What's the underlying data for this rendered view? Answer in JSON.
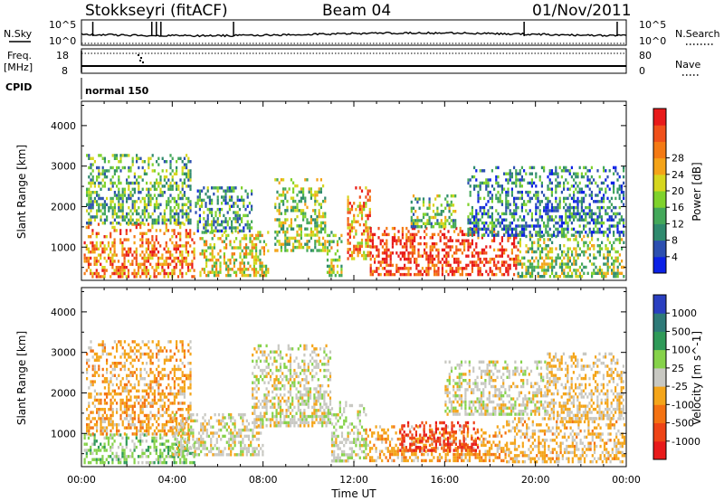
{
  "header": {
    "station": "Stokkseyri (fitACF)",
    "beam": "Beam 04",
    "date": "01/Nov/2011"
  },
  "panels": {
    "nsky_label": "N.Sky",
    "nsky_ticks": [
      "10^5",
      "10^0"
    ],
    "nsearch_label": "N.Search",
    "nsearch_ticks": [
      "10^5",
      "10^0"
    ],
    "freq_label_1": "Freq.",
    "freq_label_2": "[MHz]",
    "freq_ticks": [
      "18",
      "8"
    ],
    "nave_label": "Nave",
    "nave_ticks": [
      "80",
      "0"
    ],
    "cpid_label": "CPID",
    "cpid_value": "normal 150"
  },
  "chart_data": [
    {
      "type": "heatmap",
      "title": "Power",
      "ylabel": "Slant Range [km]",
      "xlabel": "Time UT",
      "xlim": [
        0,
        24
      ],
      "ylim": [
        180,
        4600
      ],
      "x_tick_labels": [
        "00:00",
        "04:00",
        "08:00",
        "12:00",
        "16:00",
        "20:00",
        "00:00"
      ],
      "y_ticks": [
        1000,
        2000,
        3000,
        4000
      ],
      "colorbar": {
        "label": "Power [dB]",
        "range": [
          0,
          32
        ],
        "ticks": [
          "4",
          "8",
          "12",
          "16",
          "20",
          "24",
          "28"
        ],
        "colors": [
          "#0b21e6",
          "#2c4fb0",
          "#2f8a6e",
          "#44a85a",
          "#7fd22c",
          "#d6d61e",
          "#f4a318",
          "#f47a14",
          "#f0501a",
          "#e81a1a"
        ]
      },
      "regions": [
        {
          "t0": 0.1,
          "t1": 5.0,
          "r0": 300,
          "r1": 1600,
          "level": 0.75
        },
        {
          "t0": 0.2,
          "t1": 4.8,
          "r0": 1600,
          "r1": 3300,
          "level": 0.35
        },
        {
          "t0": 5.2,
          "t1": 8.2,
          "r0": 300,
          "r1": 1400,
          "level": 0.55
        },
        {
          "t0": 5.0,
          "t1": 7.5,
          "r0": 1400,
          "r1": 2500,
          "level": 0.3
        },
        {
          "t0": 8.5,
          "t1": 10.7,
          "r0": 900,
          "r1": 2700,
          "level": 0.45
        },
        {
          "t0": 10.8,
          "t1": 11.5,
          "r0": 300,
          "r1": 1400,
          "level": 0.5
        },
        {
          "t0": 11.7,
          "t1": 12.7,
          "r0": 700,
          "r1": 2500,
          "level": 0.7
        },
        {
          "t0": 12.7,
          "t1": 19.2,
          "r0": 300,
          "r1": 1500,
          "level": 0.9
        },
        {
          "t0": 14.5,
          "t1": 16.5,
          "r0": 1500,
          "r1": 2300,
          "level": 0.4
        },
        {
          "t0": 19.2,
          "t1": 23.9,
          "r0": 300,
          "r1": 1300,
          "level": 0.45
        },
        {
          "t0": 17.0,
          "t1": 23.9,
          "r0": 1300,
          "r1": 3000,
          "level": 0.25
        }
      ]
    },
    {
      "type": "heatmap",
      "title": "Velocity",
      "ylabel": "Slant Range [km]",
      "xlabel": "Time UT",
      "xlim": [
        0,
        24
      ],
      "ylim": [
        180,
        4600
      ],
      "x_tick_labels": [
        "00:00",
        "04:00",
        "08:00",
        "12:00",
        "16:00",
        "20:00",
        "00:00"
      ],
      "y_ticks": [
        1000,
        2000,
        3000,
        4000
      ],
      "colorbar": {
        "label": "Velocity [m s^-1]",
        "range": [
          -1250,
          1250
        ],
        "ticks": [
          "1000",
          "500",
          "100",
          "25",
          "-25",
          "-100",
          "-500",
          "-1000"
        ],
        "colors": [
          "#2a3fc0",
          "#2e7a78",
          "#2f9a58",
          "#86d24a",
          "#c8c8c2",
          "#f4a51a",
          "#f47212",
          "#ee4416",
          "#e81a1a"
        ]
      },
      "regions": [
        {
          "t0": 0.1,
          "t1": 5.0,
          "r0": 300,
          "r1": 1000,
          "vel": 300
        },
        {
          "t0": 0.2,
          "t1": 4.8,
          "r0": 1000,
          "r1": 3300,
          "vel": -300
        },
        {
          "t0": 4.0,
          "t1": 8.0,
          "r0": 500,
          "r1": 1500,
          "vel": 0
        },
        {
          "t0": 7.5,
          "t1": 11.0,
          "r0": 1200,
          "r1": 3200,
          "vel": 0
        },
        {
          "t0": 11.0,
          "t1": 12.5,
          "r0": 300,
          "r1": 1800,
          "vel": 60
        },
        {
          "t0": 12.5,
          "t1": 18.7,
          "r0": 300,
          "r1": 1200,
          "vel": -300
        },
        {
          "t0": 14.0,
          "t1": 17.5,
          "r0": 600,
          "r1": 1300,
          "vel": -900
        },
        {
          "t0": 16.0,
          "t1": 20.5,
          "r0": 1500,
          "r1": 2800,
          "vel": 0
        },
        {
          "t0": 18.7,
          "t1": 23.9,
          "r0": 300,
          "r1": 1400,
          "vel": -200
        },
        {
          "t0": 20.5,
          "t1": 23.9,
          "r0": 1400,
          "r1": 3000,
          "vel": -150
        }
      ]
    }
  ]
}
